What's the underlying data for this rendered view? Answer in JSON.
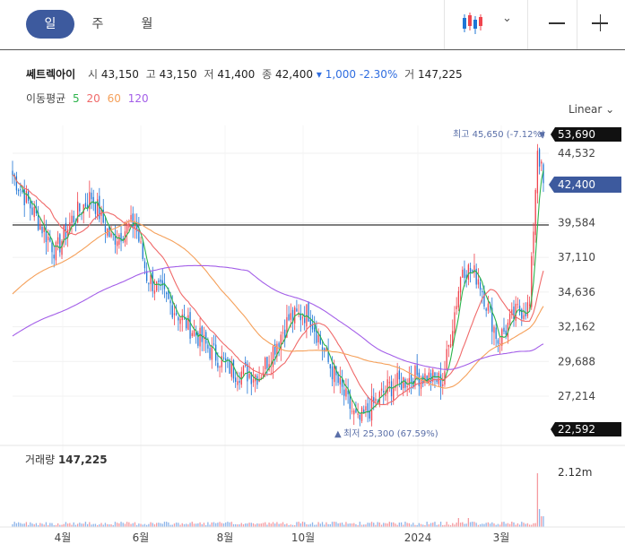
{
  "toolbar": {
    "tabs": [
      {
        "label": "일",
        "active": true
      },
      {
        "label": "주",
        "active": false
      },
      {
        "label": "월",
        "active": false
      }
    ],
    "chart_type_icon": "candlestick-icon",
    "dropdown_icon": "chevron-down-icon",
    "zoom_out_icon": "minus-icon",
    "zoom_in_icon": "plus-icon"
  },
  "stock": {
    "name": "쎄트렉아이",
    "open_label": "시",
    "open": "43,150",
    "high_label": "고",
    "high": "43,150",
    "low_label": "저",
    "low": "41,400",
    "close_label": "종",
    "close": "42,400",
    "change": "1,000",
    "change_pct": "-2.30%",
    "volume_label": "거",
    "volume": "147,225"
  },
  "moving_average": {
    "label": "이동평균",
    "periods": [
      {
        "label": "5",
        "color": "#2bb34a"
      },
      {
        "label": "20",
        "color": "#f06a6a"
      },
      {
        "label": "60",
        "color": "#f5a05a"
      },
      {
        "label": "120",
        "color": "#a35ee8"
      }
    ]
  },
  "scale_mode": "Linear",
  "colors": {
    "up": "#f0444e",
    "down": "#1f76d6",
    "price_tag": "#3d5a9e",
    "marker": "#5a6fa8"
  },
  "annotations": {
    "high": "최고 45,650 (-7.12%)",
    "low": "최저 25,300 (67.59%)"
  },
  "price_tags": {
    "top": "53,690",
    "current": "42,400",
    "bottom": "22,592"
  },
  "volume_panel": {
    "label": "거래량",
    "value": "147,225",
    "axis_max": "2.12m"
  },
  "chart_data": {
    "type": "candlestick",
    "title": "",
    "x_tick_labels": [
      "4월",
      "6월",
      "8월",
      "10월",
      "2024",
      "3월"
    ],
    "y_tick_labels": [
      "44,532",
      "39,584",
      "37,110",
      "34,636",
      "32,162",
      "29,688",
      "27,214"
    ],
    "ylim": [
      22592,
      53690
    ],
    "horizontal_line": 39584,
    "series": [
      {
        "name": "5",
        "close_price_path": true
      },
      {
        "name": "20"
      },
      {
        "name": "60"
      },
      {
        "name": "120"
      }
    ],
    "key_points": [
      {
        "x": "3월 초",
        "price": 43000
      },
      {
        "x": "3월 말",
        "price": 40500
      },
      {
        "x": "6월",
        "price": 39800
      },
      {
        "x": "7월 말",
        "price": 29000
      },
      {
        "x": "9월 말",
        "price": 33200
      },
      {
        "x": "11월",
        "price": 25300
      },
      {
        "x": "2024년 1월",
        "price": 28200
      },
      {
        "x": "2024년 2월",
        "price": 37500
      },
      {
        "x": "2024년 2월 말",
        "price": 31000
      },
      {
        "x": "2024년 3월",
        "price": 33500
      },
      {
        "x": "2024년 4월",
        "price": 45650
      },
      {
        "x": "현재",
        "price": 42400
      }
    ],
    "grid": true,
    "legend": "top-left"
  }
}
